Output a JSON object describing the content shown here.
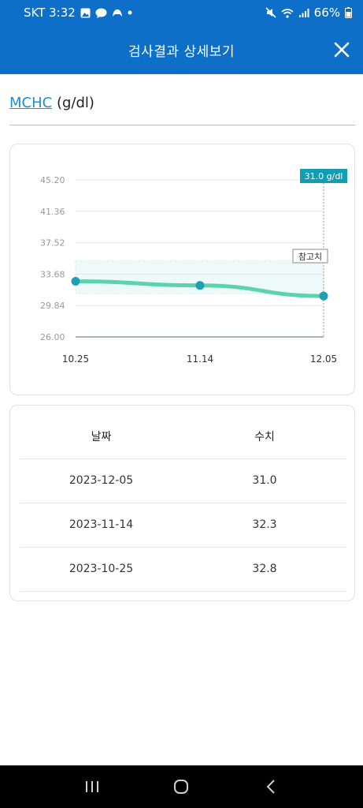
{
  "status_bar": {
    "carrier_time": "SKT 3:32",
    "battery": "66%",
    "left_icons": [
      "gallery-icon",
      "talk-icon",
      "game-icon",
      "dot-icon"
    ],
    "right_icons": [
      "mute-icon",
      "wifi-icon",
      "signal-icon",
      "battery-icon"
    ]
  },
  "app_bar": {
    "title": "검사결과 상세보기",
    "close_icon": "close-icon"
  },
  "test": {
    "name": "MCHC",
    "unit": "(g/dl)"
  },
  "chart_data": {
    "type": "line",
    "categories": [
      "10.25",
      "11.14",
      "12.05"
    ],
    "values": [
      32.8,
      32.3,
      31.0
    ],
    "y_ticks": [
      "26.00",
      "29.84",
      "33.68",
      "37.52",
      "41.36",
      "45.20"
    ],
    "ylim": [
      26.0,
      45.2
    ],
    "reference_range": [
      31.3,
      35.3
    ],
    "reference_label": "참고치",
    "tooltip": "31.0 g/dl",
    "colors": {
      "line": "#5cd3ad",
      "point": "#1e9fb4",
      "tooltip_bg": "#149cb0",
      "band": "#eefafa"
    },
    "grid": true
  },
  "table": {
    "headers": [
      "날짜",
      "수치"
    ],
    "rows": [
      [
        "2023-12-05",
        "31.0"
      ],
      [
        "2023-11-14",
        "32.3"
      ],
      [
        "2023-10-25",
        "32.8"
      ]
    ]
  },
  "nav_bar": {
    "buttons": [
      "recent-apps-icon",
      "home-icon",
      "back-icon"
    ]
  }
}
